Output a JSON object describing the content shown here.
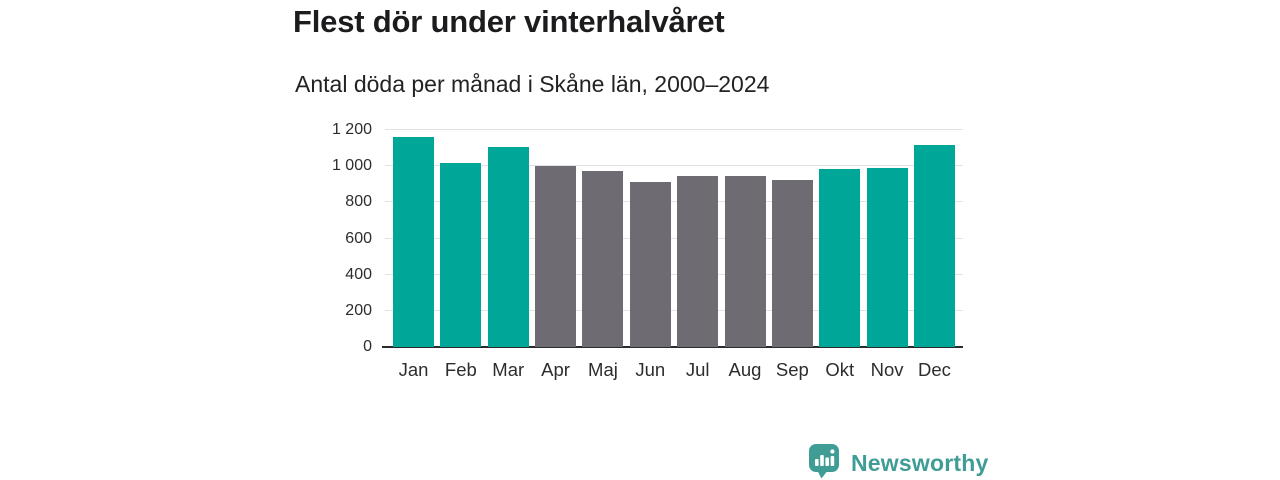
{
  "header": {
    "title": "Flest dör under vinterhalvåret",
    "subtitle": "Antal döda per månad i Skåne län, 2000–2024"
  },
  "chart_data": {
    "type": "bar",
    "title": "Flest dör under vinterhalvåret",
    "subtitle": "Antal döda per månad i Skåne län, 2000–2024",
    "categories": [
      "Jan",
      "Feb",
      "Mar",
      "Apr",
      "Maj",
      "Jun",
      "Jul",
      "Aug",
      "Sep",
      "Okt",
      "Nov",
      "Dec"
    ],
    "values": [
      1160,
      1020,
      1105,
      1000,
      975,
      915,
      945,
      945,
      925,
      985,
      990,
      1115
    ],
    "highlighted": [
      true,
      true,
      true,
      false,
      false,
      false,
      false,
      false,
      false,
      true,
      true,
      true
    ],
    "colors": {
      "highlight": "#00a698",
      "base": "#6e6c72",
      "gridline": "#e2e2e6",
      "axis": "#2b2b2e"
    },
    "xlabel": "",
    "ylabel": "",
    "ylim": [
      0,
      1200
    ],
    "yticks": [
      0,
      200,
      400,
      600,
      800,
      1000,
      1200
    ],
    "ytick_labels": [
      "0",
      "200",
      "400",
      "600",
      "800",
      "1 000",
      "1 200"
    ],
    "grid": true,
    "legend": "none"
  },
  "branding": {
    "logo_text": "Newsworthy",
    "logo_icon": "bar-chart-speech-bubble-icon",
    "logo_color": "#3f9d96"
  }
}
